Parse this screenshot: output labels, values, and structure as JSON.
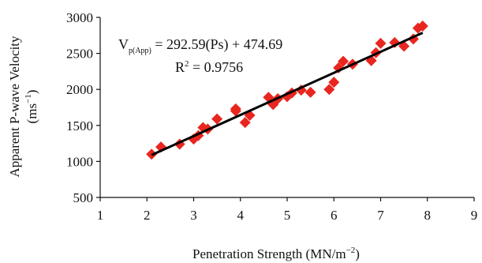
{
  "chart_data": {
    "type": "scatter",
    "title": "",
    "xlabel": "Penetration Strength (MN/m",
    "xlabel_exp": "−2",
    "xlabel_close": ")",
    "ylabel_line1": "Apparent P-wave Velocity",
    "ylabel_line2": "(ms",
    "ylabel_exp": "−1",
    "ylabel_close": ")",
    "xlim": [
      1,
      9
    ],
    "ylim": [
      500,
      3000
    ],
    "xticks": [
      1,
      2,
      3,
      4,
      5,
      6,
      7,
      8,
      9
    ],
    "yticks": [
      500,
      1000,
      1500,
      2000,
      2500,
      3000
    ],
    "grid": false,
    "marker": "diamond",
    "marker_color": "#e8261f",
    "line_color": "#000000",
    "points": [
      {
        "x": 2.1,
        "y": 1100
      },
      {
        "x": 2.3,
        "y": 1200
      },
      {
        "x": 2.7,
        "y": 1240
      },
      {
        "x": 3.0,
        "y": 1310
      },
      {
        "x": 3.1,
        "y": 1360
      },
      {
        "x": 3.2,
        "y": 1470
      },
      {
        "x": 3.3,
        "y": 1450
      },
      {
        "x": 3.5,
        "y": 1590
      },
      {
        "x": 3.9,
        "y": 1700
      },
      {
        "x": 3.9,
        "y": 1730
      },
      {
        "x": 4.1,
        "y": 1540
      },
      {
        "x": 4.2,
        "y": 1640
      },
      {
        "x": 4.6,
        "y": 1890
      },
      {
        "x": 4.7,
        "y": 1790
      },
      {
        "x": 4.8,
        "y": 1870
      },
      {
        "x": 5.0,
        "y": 1900
      },
      {
        "x": 5.1,
        "y": 1950
      },
      {
        "x": 5.3,
        "y": 1990
      },
      {
        "x": 5.5,
        "y": 1960
      },
      {
        "x": 5.9,
        "y": 2000
      },
      {
        "x": 6.0,
        "y": 2100
      },
      {
        "x": 6.1,
        "y": 2300
      },
      {
        "x": 6.2,
        "y": 2390
      },
      {
        "x": 6.4,
        "y": 2350
      },
      {
        "x": 6.8,
        "y": 2400
      },
      {
        "x": 6.9,
        "y": 2510
      },
      {
        "x": 7.0,
        "y": 2640
      },
      {
        "x": 7.3,
        "y": 2650
      },
      {
        "x": 7.5,
        "y": 2600
      },
      {
        "x": 7.7,
        "y": 2700
      },
      {
        "x": 7.8,
        "y": 2850
      },
      {
        "x": 7.9,
        "y": 2880
      }
    ],
    "trendline": {
      "slope": 292.59,
      "intercept": 474.69,
      "x_from": 2.1,
      "x_to": 7.9
    },
    "annotation": {
      "eq_prefix": "V",
      "eq_subscript": "p(App)",
      "eq_body": " = 292.59(Ps) + 474.69",
      "r2_prefix": "R",
      "r2_sup": "2",
      "r2_body": " = 0.9756"
    }
  }
}
